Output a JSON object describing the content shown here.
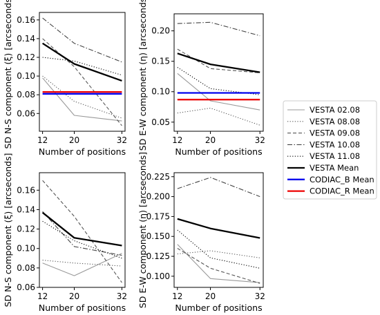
{
  "chart_data": [
    {
      "type": "line",
      "panel": "top-left",
      "xlabel": "Number of positions",
      "ylabel": "SD N-S component (ξ) [arcseconds]",
      "x": [
        12,
        20,
        32
      ],
      "xlim": [
        11.2,
        32.8
      ],
      "ylim": [
        0.041,
        0.168
      ],
      "yticks": [
        0.06,
        0.08,
        0.1,
        0.12,
        0.14,
        0.16
      ],
      "ytick_labels": [
        "0.06",
        "0.08",
        "0.10",
        "0.12",
        "0.14",
        "0.16"
      ],
      "xtick_labels": [
        "12",
        "20",
        "32"
      ],
      "series": [
        {
          "name": "VESTA 02.08",
          "values": [
            0.098,
            0.058,
            0.052
          ]
        },
        {
          "name": "VESTA 08.08",
          "values": [
            0.1,
            0.073,
            0.055
          ]
        },
        {
          "name": "VESTA 09.08",
          "values": [
            0.14,
            0.11,
            0.047
          ]
        },
        {
          "name": "VESTA 10.08",
          "values": [
            0.162,
            0.135,
            0.115
          ]
        },
        {
          "name": "VESTA 11.08",
          "values": [
            0.12,
            0.116,
            0.101
          ]
        },
        {
          "name": "VESTA Mean",
          "values": [
            0.135,
            0.113,
            0.095
          ]
        },
        {
          "name": "CODIAC_B Mean",
          "values": [
            0.081,
            0.081,
            0.081
          ]
        },
        {
          "name": "CODIAC_R Mean",
          "values": [
            0.083,
            0.083,
            0.083
          ]
        }
      ]
    },
    {
      "type": "line",
      "panel": "top-right",
      "xlabel": "Number of positions",
      "ylabel": "SD E-W component (η) [arcseconds]",
      "x": [
        12,
        20,
        32
      ],
      "xlim": [
        11.2,
        32.8
      ],
      "ylim": [
        0.035,
        0.228
      ],
      "yticks": [
        0.05,
        0.1,
        0.15,
        0.2
      ],
      "ytick_labels": [
        "0.05",
        "0.10",
        "0.15",
        "0.20"
      ],
      "xtick_labels": [
        "12",
        "20",
        "32"
      ],
      "series": [
        {
          "name": "VESTA 02.08",
          "values": [
            0.13,
            0.085,
            0.07
          ]
        },
        {
          "name": "VESTA 08.08",
          "values": [
            0.065,
            0.073,
            0.045
          ]
        },
        {
          "name": "VESTA 09.08",
          "values": [
            0.17,
            0.138,
            0.131
          ]
        },
        {
          "name": "VESTA 10.08",
          "values": [
            0.212,
            0.214,
            0.192
          ]
        },
        {
          "name": "VESTA 11.08",
          "values": [
            0.14,
            0.105,
            0.095
          ]
        },
        {
          "name": "VESTA Mean",
          "values": [
            0.163,
            0.145,
            0.132
          ]
        },
        {
          "name": "CODIAC_B Mean",
          "values": [
            0.098,
            0.098,
            0.098
          ]
        },
        {
          "name": "CODIAC_R Mean",
          "values": [
            0.087,
            0.087,
            0.087
          ]
        }
      ]
    },
    {
      "type": "line",
      "panel": "bottom-left",
      "xlabel": "Number of positions",
      "ylabel": "SD N-S component (ξ) [arcseconds]",
      "x": [
        12,
        20,
        32
      ],
      "xlim": [
        11.2,
        32.8
      ],
      "ylim": [
        0.06,
        0.178
      ],
      "yticks": [
        0.06,
        0.08,
        0.1,
        0.12,
        0.14,
        0.16
      ],
      "ytick_labels": [
        "0.06",
        "0.08",
        "0.10",
        "0.12",
        "0.14",
        "0.16"
      ],
      "xtick_labels": [
        "12",
        "20",
        "32"
      ],
      "series": [
        {
          "name": "VESTA 02.08",
          "values": [
            0.085,
            0.072,
            0.095
          ]
        },
        {
          "name": "VESTA 08.08",
          "values": [
            0.088,
            0.085,
            0.082
          ]
        },
        {
          "name": "VESTA 09.08",
          "values": [
            0.17,
            0.133,
            0.065
          ]
        },
        {
          "name": "VESTA 10.08",
          "values": [
            0.138,
            0.102,
            0.093
          ]
        },
        {
          "name": "VESTA 11.08",
          "values": [
            0.128,
            0.108,
            0.09
          ]
        },
        {
          "name": "VESTA Mean",
          "values": [
            0.137,
            0.111,
            0.103
          ]
        }
      ]
    },
    {
      "type": "line",
      "panel": "bottom-right",
      "xlabel": "Number of positions",
      "ylabel": "SD E-W component (η) [arcseconds]",
      "x": [
        12,
        20,
        32
      ],
      "xlim": [
        11.2,
        32.8
      ],
      "ylim": [
        0.086,
        0.23
      ],
      "yticks": [
        0.1,
        0.125,
        0.15,
        0.175,
        0.2,
        0.225
      ],
      "ytick_labels": [
        "0.100",
        "0.125",
        "0.150",
        "0.175",
        "0.200",
        "0.225"
      ],
      "xtick_labels": [
        "12",
        "20",
        "32"
      ],
      "series": [
        {
          "name": "VESTA 02.08",
          "values": [
            0.14,
            0.097,
            0.092
          ]
        },
        {
          "name": "VESTA 08.08",
          "values": [
            0.128,
            0.132,
            0.123
          ]
        },
        {
          "name": "VESTA 09.08",
          "values": [
            0.135,
            0.11,
            0.091
          ]
        },
        {
          "name": "VESTA 10.08",
          "values": [
            0.21,
            0.224,
            0.2
          ]
        },
        {
          "name": "VESTA 11.08",
          "values": [
            0.158,
            0.123,
            0.11
          ]
        },
        {
          "name": "VESTA Mean",
          "values": [
            0.172,
            0.16,
            0.148
          ]
        }
      ]
    }
  ],
  "legend": {
    "placement": "right",
    "entries": [
      {
        "name": "VESTA 02.08",
        "color": "#999999",
        "style": "solid",
        "width": "thin"
      },
      {
        "name": "VESTA 08.08",
        "color": "#555555",
        "style": "dotted",
        "width": "thin"
      },
      {
        "name": "VESTA 09.08",
        "color": "#555555",
        "style": "dashed",
        "width": "thin"
      },
      {
        "name": "VESTA 10.08",
        "color": "#444444",
        "style": "dashdot",
        "width": "thin"
      },
      {
        "name": "VESTA 11.08",
        "color": "#000000",
        "style": "dotted",
        "width": "thin"
      },
      {
        "name": "VESTA Mean",
        "color": "#000000",
        "style": "solid",
        "width": "thick"
      },
      {
        "name": "CODIAC_B Mean",
        "color": "#0000ee",
        "style": "solid",
        "width": "thick"
      },
      {
        "name": "CODIAC_R Mean",
        "color": "#ee0000",
        "style": "solid",
        "width": "thick"
      }
    ]
  }
}
